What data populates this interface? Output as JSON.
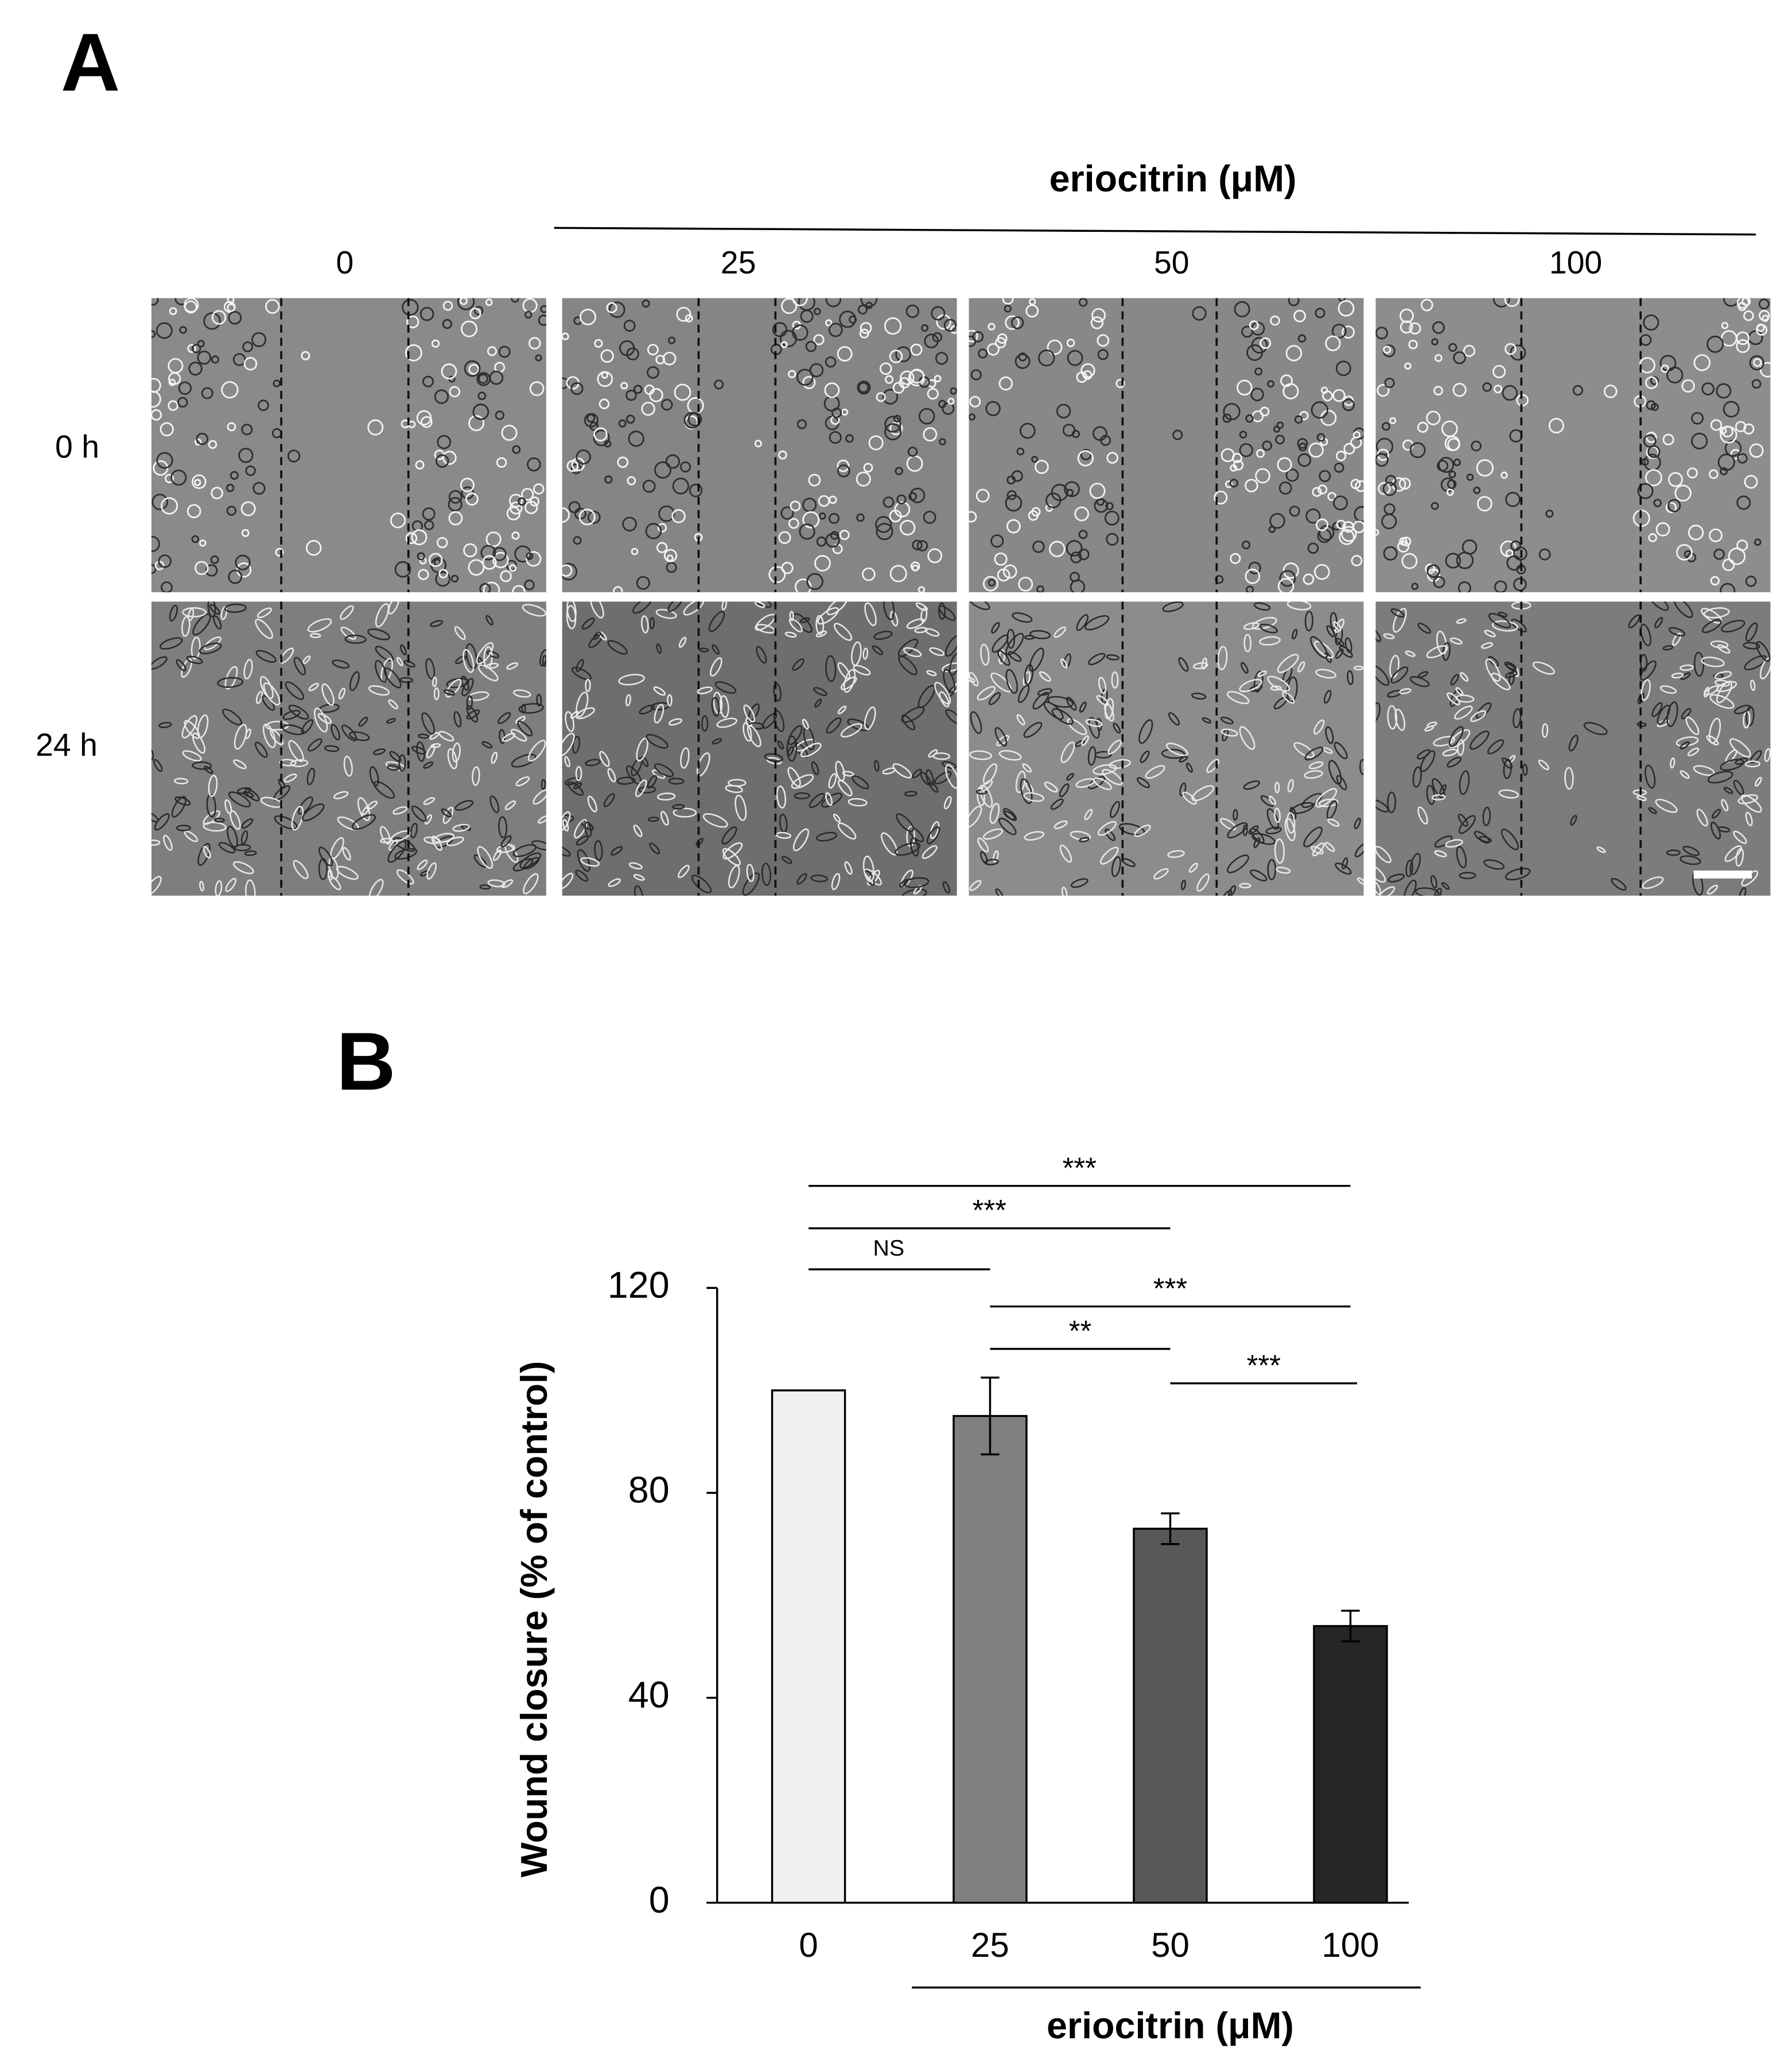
{
  "panel_a": {
    "label": "A",
    "header": "eriocitrin (μM)",
    "columns": [
      "0",
      "25",
      "50",
      "100"
    ],
    "rows": [
      "0 h",
      "24 h"
    ]
  },
  "panel_b": {
    "label": "B"
  },
  "chart_data": {
    "type": "bar",
    "categories": [
      "0",
      "25",
      "50",
      "100"
    ],
    "values": [
      100,
      95,
      73,
      54
    ],
    "errors": [
      0,
      7.5,
      3,
      3
    ],
    "colors": [
      "#f0f0f0",
      "#808080",
      "#585858",
      "#262626"
    ],
    "ylim": [
      0,
      120
    ],
    "yticks": [
      0,
      40,
      80,
      120
    ],
    "y_label": "Wound closure (% of control)",
    "x_label": "eriocitrin (μM)",
    "annotations": [
      {
        "label": "***",
        "pair": [
          "0",
          "100"
        ]
      },
      {
        "label": "***",
        "pair": [
          "0",
          "50"
        ]
      },
      {
        "label": "NS",
        "pair": [
          "0",
          "25"
        ]
      },
      {
        "label": "***",
        "pair": [
          "25",
          "100"
        ]
      },
      {
        "label": "**",
        "pair": [
          "25",
          "50"
        ]
      },
      {
        "label": "***",
        "pair": [
          "50",
          "100"
        ]
      }
    ]
  }
}
